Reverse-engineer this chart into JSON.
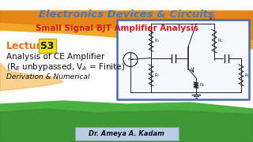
{
  "title1": "Electronics Devices & Circuits",
  "title2": "Small Signal BJT Amplifier Analysis",
  "lecture_label": "Lecture",
  "lecture_num": "53",
  "line1": "Analysis of CE Amplifier",
  "line2": "(R$_E$ unbypassed, V$_A$ = Finite)",
  "line3": "Derivation & Numerical",
  "author": "Dr. Ameya A. Kadam",
  "bg_color": "#ffffff",
  "wave_orange1": "#f5a623",
  "wave_orange2": "#e07010",
  "wave_green": "#4ab040",
  "title1_color": "#4a7ab5",
  "title2_color": "#cc2020",
  "lecture_color": "#e87010",
  "num_bg": "#f0e020",
  "num_border": "#c8a000",
  "text_color": "#111111",
  "author_bg": "#b8cce4",
  "author_border": "#8899aa",
  "circuit_bg": "#f5f8ff",
  "circuit_border": "#4a6aaa"
}
